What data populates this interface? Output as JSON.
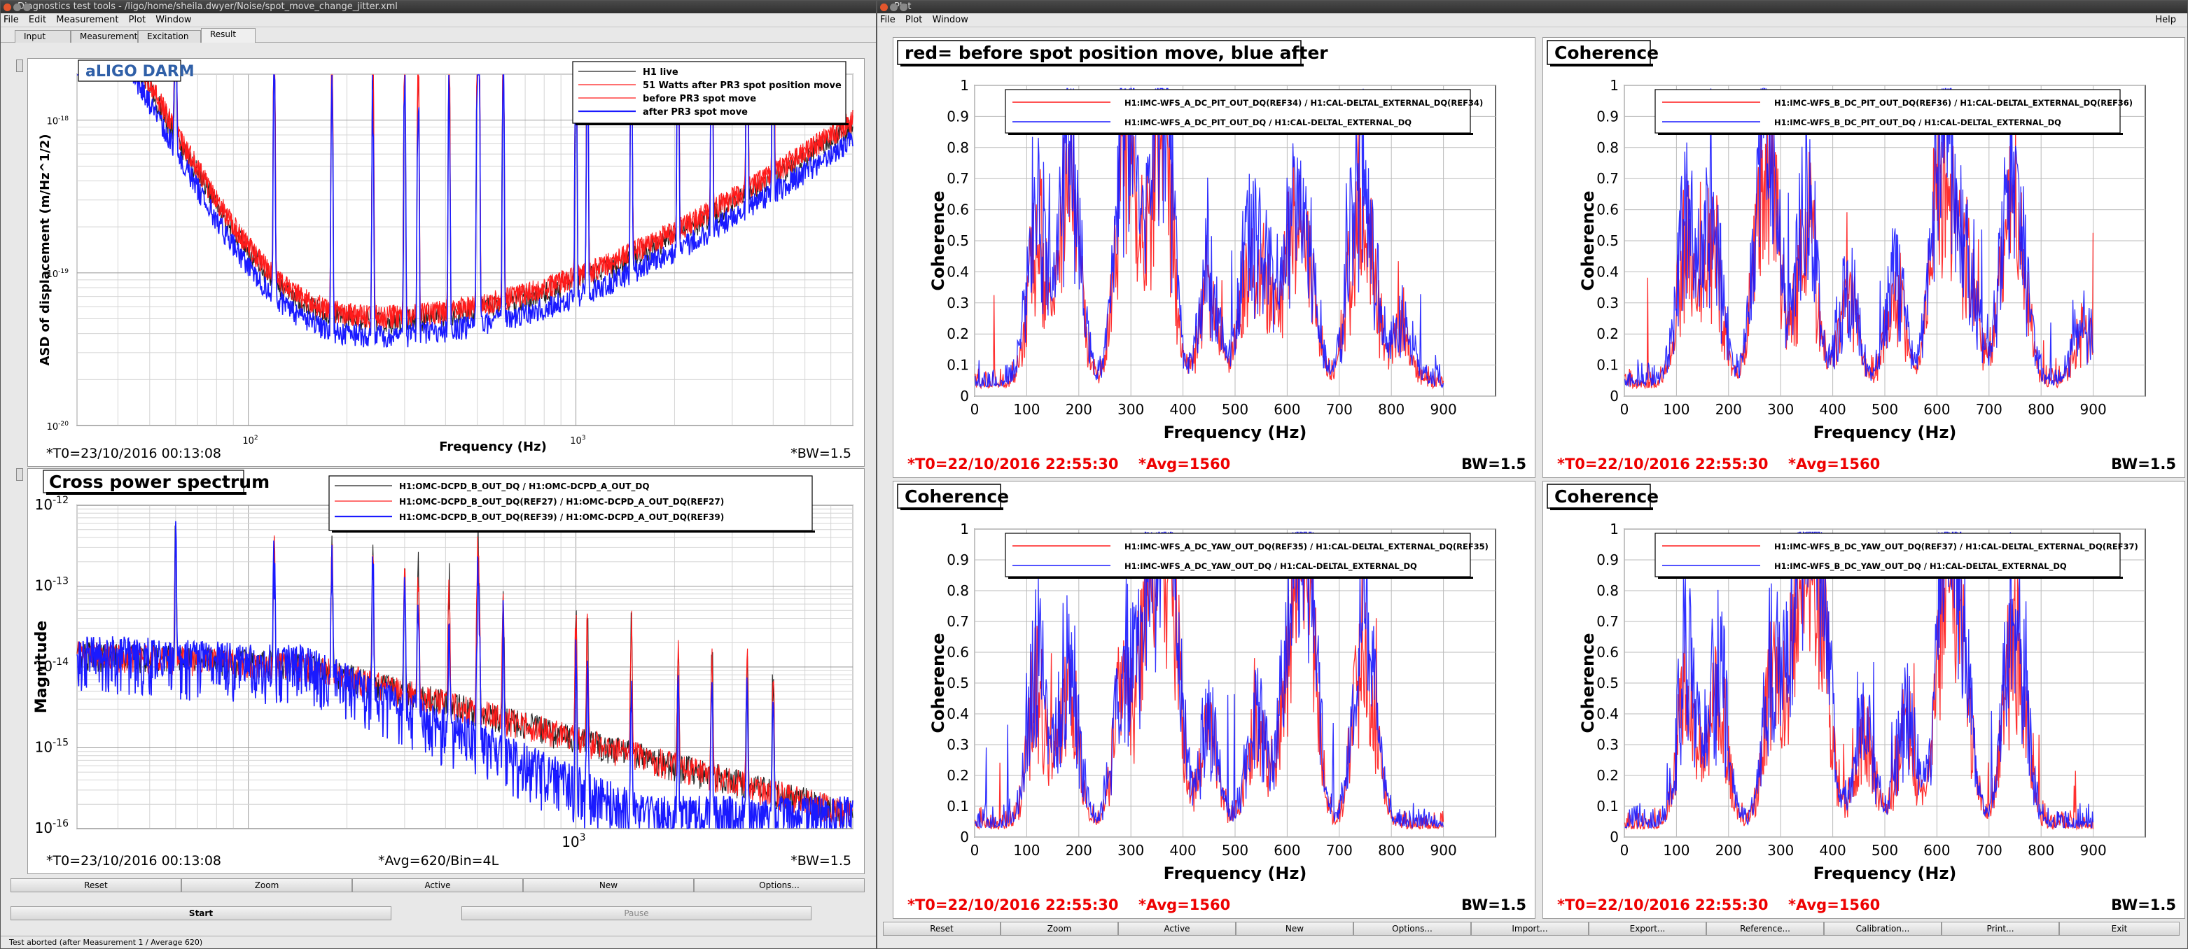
{
  "left_window": {
    "title": "Diagnostics test tools - /ligo/home/sheila.dwyer/Noise/spot_move_change_jitter.xml",
    "menu": [
      "File",
      "Edit",
      "Measurement",
      "Plot",
      "Window"
    ],
    "tabs": [
      "Input",
      "Measurement",
      "Excitation",
      "Result"
    ],
    "active_tab": "Result",
    "buttons": [
      "Reset",
      "Zoom",
      "Active",
      "New",
      "Options..."
    ],
    "start_label": "Start",
    "pause_label": "Pause",
    "status": "Test aborted (after Measurement 1 / Average 620)"
  },
  "right_window": {
    "title": "Plot",
    "menu": [
      "File",
      "Plot",
      "Window"
    ],
    "help": "Help",
    "buttons": [
      "Reset",
      "Zoom",
      "Active",
      "New",
      "Options...",
      "Import...",
      "Export...",
      "Reference...",
      "Calibration...",
      "Print...",
      "Exit"
    ]
  },
  "colors": {
    "red": "#ff1a1a",
    "blue": "#1a1aff",
    "black": "#222222",
    "title_blue": "#3060a8"
  },
  "chart_data": [
    {
      "id": "darm",
      "type": "line",
      "title": "aLIGO DARM",
      "xlabel": "Frequency (Hz)",
      "ylabel": "ASD of displacement (m/Hz^1/2)",
      "xscale": "log",
      "yscale": "log",
      "xlim": [
        30,
        7000
      ],
      "ylim": [
        1e-20,
        2e-18
      ],
      "xticks": [
        "10^2",
        "10^3"
      ],
      "yticks": [
        "10^-18",
        "10^-19",
        "10^-20"
      ],
      "footer_left": "*T0=23/10/2016 00:13:08",
      "footer_right": "*BW=1.5",
      "legend_position": "top-right",
      "series": [
        {
          "name": "H1 live",
          "color": "#222222"
        },
        {
          "name": "51 Watts after PR3 spot position move",
          "color": "#ff1a1a"
        },
        {
          "name": "before PR3 spot move",
          "color": "#ff1a1a"
        },
        {
          "name": "after PR3 spot move",
          "color": "#1a1aff"
        }
      ]
    },
    {
      "id": "cps",
      "type": "line",
      "title": "Cross power spectrum",
      "xlabel": "",
      "ylabel": "Magnitude",
      "xscale": "log",
      "yscale": "log",
      "xlim": [
        30,
        7000
      ],
      "ylim": [
        1e-16,
        1e-12
      ],
      "xticks": [
        "10^3"
      ],
      "yticks": [
        "10^-12",
        "10^-13",
        "10^-14",
        "10^-15",
        "10^-16"
      ],
      "footer_left": "*T0=23/10/2016 00:13:08",
      "footer_mid": "*Avg=620/Bin=4L",
      "footer_right": "*BW=1.5",
      "legend_position": "top-right",
      "series": [
        {
          "name": "H1:OMC-DCPD_B_OUT_DQ / H1:OMC-DCPD_A_OUT_DQ",
          "color": "#222222"
        },
        {
          "name": "H1:OMC-DCPD_B_OUT_DQ(REF27) / H1:OMC-DCPD_A_OUT_DQ(REF27)",
          "color": "#ff1a1a"
        },
        {
          "name": "H1:OMC-DCPD_B_OUT_DQ(REF39) / H1:OMC-DCPD_A_OUT_DQ(REF39)",
          "color": "#1a1aff"
        }
      ]
    },
    {
      "id": "coh1",
      "type": "line",
      "title": "red= before spot position move, blue after",
      "xlabel": "Frequency (Hz)",
      "ylabel": "Coherence",
      "xlim": [
        0,
        1000
      ],
      "ylim": [
        0,
        1
      ],
      "xticks": [
        0,
        100,
        200,
        300,
        400,
        500,
        600,
        700,
        800,
        900
      ],
      "yticks": [
        0,
        0.1,
        0.2,
        0.3,
        0.4,
        0.5,
        0.6,
        0.7,
        0.8,
        0.9,
        1
      ],
      "footer_left": "*T0=22/10/2016 22:55:30",
      "footer_mid": "*Avg=1560",
      "footer_right": "BW=1.5",
      "legend_position": "top-right",
      "series": [
        {
          "name": "H1:IMC-WFS_A_DC_PIT_OUT_DQ(REF34) / H1:CAL-DELTAL_EXTERNAL_DQ(REF34)",
          "color": "#ff1a1a"
        },
        {
          "name": "H1:IMC-WFS_A_DC_PIT_OUT_DQ / H1:CAL-DELTAL_EXTERNAL_DQ",
          "color": "#1a1aff"
        }
      ]
    },
    {
      "id": "coh2",
      "type": "line",
      "title": "Coherence",
      "xlabel": "Frequency (Hz)",
      "ylabel": "Coherence",
      "xlim": [
        0,
        1000
      ],
      "ylim": [
        0,
        1
      ],
      "xticks": [
        0,
        100,
        200,
        300,
        400,
        500,
        600,
        700,
        800,
        900
      ],
      "yticks": [
        0,
        0.1,
        0.2,
        0.3,
        0.4,
        0.5,
        0.6,
        0.7,
        0.8,
        0.9,
        1
      ],
      "footer_left": "*T0=22/10/2016 22:55:30",
      "footer_mid": "*Avg=1560",
      "footer_right": "BW=1.5",
      "legend_position": "top-right",
      "series": [
        {
          "name": "H1:IMC-WFS_B_DC_PIT_OUT_DQ(REF36) / H1:CAL-DELTAL_EXTERNAL_DQ(REF36)",
          "color": "#ff1a1a"
        },
        {
          "name": "H1:IMC-WFS_B_DC_PIT_OUT_DQ / H1:CAL-DELTAL_EXTERNAL_DQ",
          "color": "#1a1aff"
        }
      ]
    },
    {
      "id": "coh3",
      "type": "line",
      "title": "Coherence",
      "xlabel": "Frequency (Hz)",
      "ylabel": "Coherence",
      "xlim": [
        0,
        1000
      ],
      "ylim": [
        0,
        1
      ],
      "xticks": [
        0,
        100,
        200,
        300,
        400,
        500,
        600,
        700,
        800,
        900
      ],
      "yticks": [
        0,
        0.1,
        0.2,
        0.3,
        0.4,
        0.5,
        0.6,
        0.7,
        0.8,
        0.9,
        1
      ],
      "footer_left": "*T0=22/10/2016 22:55:30",
      "footer_mid": "*Avg=1560",
      "footer_right": "BW=1.5",
      "legend_position": "top-right",
      "series": [
        {
          "name": "H1:IMC-WFS_A_DC_YAW_OUT_DQ(REF35) / H1:CAL-DELTAL_EXTERNAL_DQ(REF35)",
          "color": "#ff1a1a"
        },
        {
          "name": "H1:IMC-WFS_A_DC_YAW_OUT_DQ / H1:CAL-DELTAL_EXTERNAL_DQ",
          "color": "#1a1aff"
        }
      ]
    },
    {
      "id": "coh4",
      "type": "line",
      "title": "Coherence",
      "xlabel": "Frequency (Hz)",
      "ylabel": "Coherence",
      "xlim": [
        0,
        1000
      ],
      "ylim": [
        0,
        1
      ],
      "xticks": [
        0,
        100,
        200,
        300,
        400,
        500,
        600,
        700,
        800,
        900
      ],
      "yticks": [
        0,
        0.1,
        0.2,
        0.3,
        0.4,
        0.5,
        0.6,
        0.7,
        0.8,
        0.9,
        1
      ],
      "footer_left": "*T0=22/10/2016 22:55:30",
      "footer_mid": "*Avg=1560",
      "footer_right": "BW=1.5",
      "legend_position": "top-right",
      "series": [
        {
          "name": "H1:IMC-WFS_B_DC_YAW_OUT_DQ(REF37) / H1:CAL-DELTAL_EXTERNAL_DQ(REF37)",
          "color": "#ff1a1a"
        },
        {
          "name": "H1:IMC-WFS_B_DC_YAW_OUT_DQ / H1:CAL-DELTAL_EXTERNAL_DQ",
          "color": "#1a1aff"
        }
      ]
    }
  ]
}
